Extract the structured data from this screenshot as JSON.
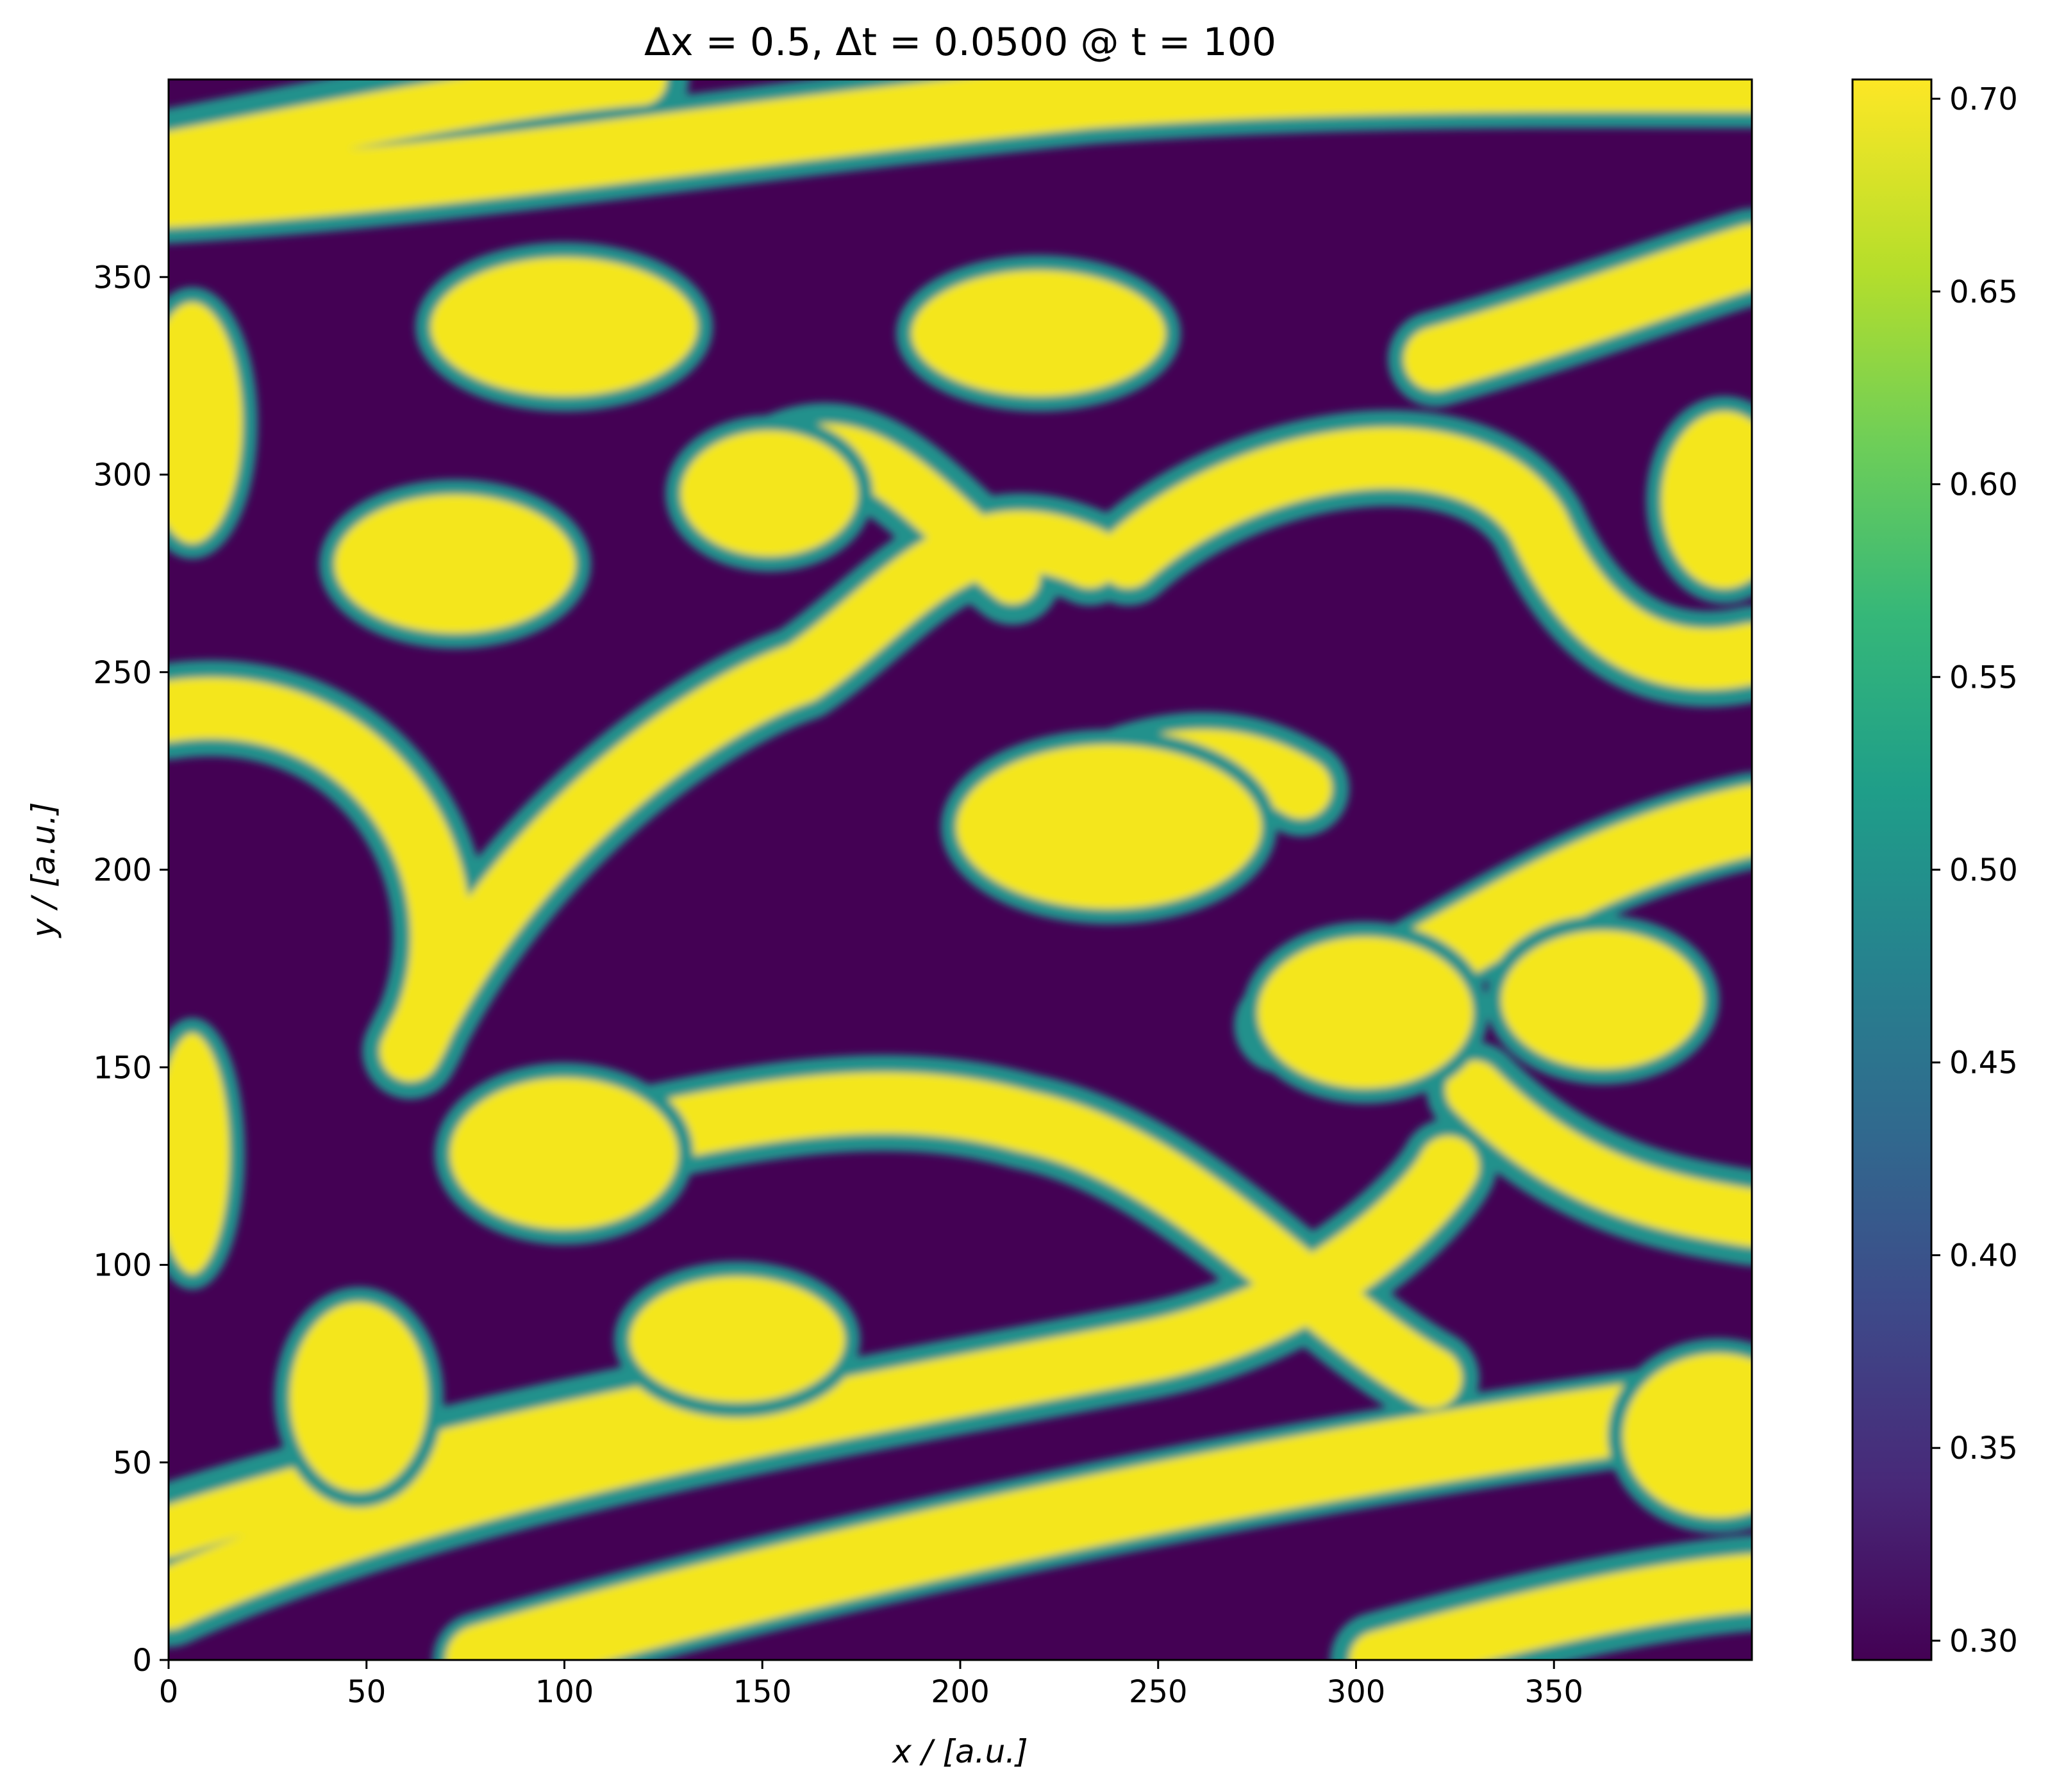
{
  "chart_data": {
    "type": "heatmap",
    "title": "Δx = 0.5,  Δt = 0.0500 @ t = 100",
    "xlabel": "x / [a.u.]",
    "ylabel": "y / [a.u.]",
    "xlim": [
      0,
      400
    ],
    "ylim": [
      0,
      400
    ],
    "x_ticks": [
      0,
      50,
      100,
      150,
      200,
      250,
      300,
      350
    ],
    "y_ticks": [
      0,
      50,
      100,
      150,
      200,
      250,
      300,
      350
    ],
    "x_tick_labels": [
      "0",
      "50",
      "100",
      "150",
      "200",
      "250",
      "300",
      "350"
    ],
    "y_tick_labels": [
      "0",
      "50",
      "100",
      "150",
      "200",
      "250",
      "300",
      "350"
    ],
    "colorbar": {
      "colormap": "viridis",
      "range": [
        0.295,
        0.705
      ],
      "ticks": [
        0.3,
        0.35,
        0.4,
        0.45,
        0.5,
        0.55,
        0.6,
        0.65,
        0.7
      ],
      "tick_labels": [
        "0.30",
        "0.35",
        "0.40",
        "0.45",
        "0.50",
        "0.55",
        "0.60",
        "0.65",
        "0.70"
      ]
    },
    "field_description": "Spinodal decomposition pattern: two phases at ~0.30 (dark purple) and ~0.70 (yellow) with diffuse interfaces",
    "phase_low": 0.3,
    "phase_high": 0.7
  },
  "colors": {
    "phase_low": "#440154",
    "phase_high": "#f4e61e",
    "interface": "#21918c"
  }
}
